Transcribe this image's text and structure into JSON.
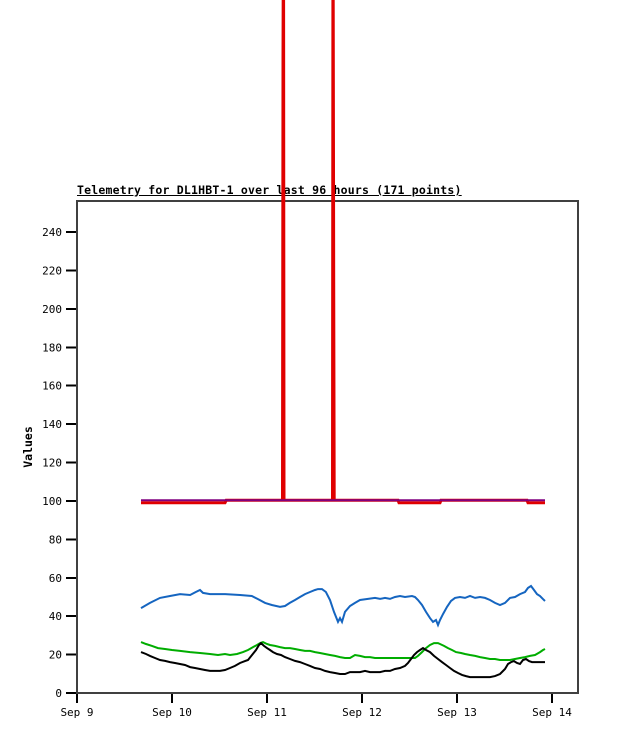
{
  "chart_data": {
    "type": "line",
    "title": "Telemetry for DL1HBT-1 over last 96 hours (171 points)",
    "xlabel": "",
    "ylabel": "Values",
    "grid": false,
    "legend_position": "none",
    "x_unit": "days (0 = Sep 9)",
    "xlim": [
      0,
      5.27
    ],
    "ylim": [
      0,
      256
    ],
    "y_ticks": [
      0,
      20,
      40,
      60,
      80,
      100,
      120,
      140,
      160,
      180,
      200,
      220,
      240
    ],
    "x_ticks": [
      {
        "day": 0,
        "label": "Sep 9"
      },
      {
        "day": 1,
        "label": "Sep 10"
      },
      {
        "day": 2,
        "label": "Sep 11"
      },
      {
        "day": 3,
        "label": "Sep 12"
      },
      {
        "day": 4,
        "label": "Sep 13"
      },
      {
        "day": 5,
        "label": "Sep 14"
      }
    ],
    "axis_color": "#404040",
    "series": [
      {
        "name": "blue",
        "color": "#1565c0",
        "width": 2,
        "points": [
          [
            0.674,
            44.2
          ],
          [
            0.768,
            46.9
          ],
          [
            0.874,
            49.5
          ],
          [
            0.979,
            50.5
          ],
          [
            1.084,
            51.5
          ],
          [
            1.19,
            51.0
          ],
          [
            1.25,
            52.6
          ],
          [
            1.295,
            53.6
          ],
          [
            1.326,
            52.1
          ],
          [
            1.4,
            51.5
          ],
          [
            1.56,
            51.5
          ],
          [
            1.716,
            51.0
          ],
          [
            1.84,
            50.5
          ],
          [
            1.905,
            48.9
          ],
          [
            1.98,
            46.9
          ],
          [
            2.05,
            45.8
          ],
          [
            2.137,
            44.8
          ],
          [
            2.19,
            45.3
          ],
          [
            2.24,
            46.9
          ],
          [
            2.295,
            48.4
          ],
          [
            2.347,
            50.0
          ],
          [
            2.4,
            51.5
          ],
          [
            2.453,
            52.6
          ],
          [
            2.505,
            53.6
          ],
          [
            2.537,
            54.1
          ],
          [
            2.579,
            54.1
          ],
          [
            2.62,
            52.6
          ],
          [
            2.663,
            48.4
          ],
          [
            2.705,
            42.2
          ],
          [
            2.747,
            37.0
          ],
          [
            2.768,
            39.0
          ],
          [
            2.789,
            37.0
          ],
          [
            2.821,
            42.2
          ],
          [
            2.874,
            45.3
          ],
          [
            2.926,
            46.9
          ],
          [
            2.979,
            48.4
          ],
          [
            3.063,
            49.0
          ],
          [
            3.137,
            49.5
          ],
          [
            3.19,
            49.0
          ],
          [
            3.242,
            49.5
          ],
          [
            3.295,
            49.0
          ],
          [
            3.347,
            50.0
          ],
          [
            3.4,
            50.5
          ],
          [
            3.453,
            50.0
          ],
          [
            3.526,
            50.5
          ],
          [
            3.558,
            50.0
          ],
          [
            3.589,
            48.4
          ],
          [
            3.632,
            45.8
          ],
          [
            3.674,
            42.2
          ],
          [
            3.716,
            39.0
          ],
          [
            3.747,
            37.0
          ],
          [
            3.779,
            38.0
          ],
          [
            3.8,
            35.4
          ],
          [
            3.821,
            38.0
          ],
          [
            3.853,
            41.1
          ],
          [
            3.895,
            44.8
          ],
          [
            3.937,
            47.9
          ],
          [
            3.979,
            49.5
          ],
          [
            4.032,
            50.0
          ],
          [
            4.084,
            49.5
          ],
          [
            4.137,
            50.5
          ],
          [
            4.19,
            49.5
          ],
          [
            4.242,
            50.0
          ],
          [
            4.295,
            49.5
          ],
          [
            4.347,
            48.4
          ],
          [
            4.4,
            46.9
          ],
          [
            4.453,
            45.8
          ],
          [
            4.505,
            46.9
          ],
          [
            4.558,
            49.5
          ],
          [
            4.611,
            50.0
          ],
          [
            4.663,
            51.5
          ],
          [
            4.716,
            52.6
          ],
          [
            4.747,
            54.7
          ],
          [
            4.779,
            55.7
          ],
          [
            4.81,
            53.6
          ],
          [
            4.842,
            51.5
          ],
          [
            4.874,
            50.5
          ],
          [
            4.905,
            48.9
          ],
          [
            4.926,
            47.9
          ]
        ]
      },
      {
        "name": "green",
        "color": "#00ad00",
        "width": 2,
        "points": [
          [
            0.674,
            26.5
          ],
          [
            0.726,
            25.5
          ],
          [
            0.789,
            24.5
          ],
          [
            0.853,
            23.4
          ],
          [
            0.926,
            22.9
          ],
          [
            1.0,
            22.4
          ],
          [
            1.084,
            21.9
          ],
          [
            1.19,
            21.3
          ],
          [
            1.295,
            20.8
          ],
          [
            1.4,
            20.3
          ],
          [
            1.484,
            19.8
          ],
          [
            1.558,
            20.3
          ],
          [
            1.611,
            19.8
          ],
          [
            1.684,
            20.3
          ],
          [
            1.747,
            21.3
          ],
          [
            1.8,
            22.4
          ],
          [
            1.853,
            23.9
          ],
          [
            1.895,
            25.0
          ],
          [
            1.926,
            26.0
          ],
          [
            1.958,
            26.5
          ],
          [
            2.0,
            25.5
          ],
          [
            2.032,
            25.0
          ],
          [
            2.084,
            24.5
          ],
          [
            2.137,
            23.9
          ],
          [
            2.19,
            23.4
          ],
          [
            2.242,
            23.4
          ],
          [
            2.295,
            22.9
          ],
          [
            2.347,
            22.4
          ],
          [
            2.4,
            21.9
          ],
          [
            2.453,
            21.9
          ],
          [
            2.505,
            21.3
          ],
          [
            2.558,
            20.8
          ],
          [
            2.611,
            20.3
          ],
          [
            2.663,
            19.8
          ],
          [
            2.716,
            19.3
          ],
          [
            2.768,
            18.7
          ],
          [
            2.821,
            18.2
          ],
          [
            2.874,
            18.2
          ],
          [
            2.926,
            19.8
          ],
          [
            2.979,
            19.3
          ],
          [
            3.032,
            18.7
          ],
          [
            3.084,
            18.7
          ],
          [
            3.137,
            18.2
          ],
          [
            3.242,
            18.2
          ],
          [
            3.347,
            18.2
          ],
          [
            3.453,
            18.2
          ],
          [
            3.558,
            18.2
          ],
          [
            3.589,
            19.3
          ],
          [
            3.632,
            21.3
          ],
          [
            3.674,
            23.4
          ],
          [
            3.716,
            25.0
          ],
          [
            3.758,
            26.0
          ],
          [
            3.8,
            26.0
          ],
          [
            3.821,
            25.5
          ],
          [
            3.863,
            24.5
          ],
          [
            3.905,
            23.4
          ],
          [
            3.947,
            22.4
          ],
          [
            3.989,
            21.3
          ],
          [
            4.042,
            20.8
          ],
          [
            4.084,
            20.3
          ],
          [
            4.137,
            19.8
          ],
          [
            4.19,
            19.3
          ],
          [
            4.242,
            18.7
          ],
          [
            4.295,
            18.2
          ],
          [
            4.347,
            17.7
          ],
          [
            4.4,
            17.7
          ],
          [
            4.453,
            17.2
          ],
          [
            4.558,
            17.2
          ],
          [
            4.611,
            17.7
          ],
          [
            4.663,
            18.2
          ],
          [
            4.716,
            18.7
          ],
          [
            4.768,
            19.3
          ],
          [
            4.821,
            19.8
          ],
          [
            4.874,
            21.3
          ],
          [
            4.905,
            22.4
          ],
          [
            4.926,
            22.9
          ]
        ]
      },
      {
        "name": "black",
        "color": "#000000",
        "width": 2,
        "points": [
          [
            0.674,
            21.3
          ],
          [
            0.726,
            20.3
          ],
          [
            0.768,
            19.3
          ],
          [
            0.821,
            18.2
          ],
          [
            0.874,
            17.2
          ],
          [
            0.926,
            16.7
          ],
          [
            0.979,
            16.1
          ],
          [
            1.032,
            15.6
          ],
          [
            1.084,
            15.1
          ],
          [
            1.137,
            14.6
          ],
          [
            1.19,
            13.5
          ],
          [
            1.242,
            13.0
          ],
          [
            1.295,
            12.5
          ],
          [
            1.347,
            12.0
          ],
          [
            1.4,
            11.5
          ],
          [
            1.505,
            11.5
          ],
          [
            1.558,
            12.0
          ],
          [
            1.611,
            13.0
          ],
          [
            1.663,
            14.1
          ],
          [
            1.716,
            15.6
          ],
          [
            1.768,
            16.6
          ],
          [
            1.8,
            17.2
          ],
          [
            1.842,
            19.8
          ],
          [
            1.884,
            22.4
          ],
          [
            1.916,
            25.0
          ],
          [
            1.937,
            26.0
          ],
          [
            1.968,
            24.5
          ],
          [
            2.0,
            23.4
          ],
          [
            2.032,
            22.4
          ],
          [
            2.063,
            21.3
          ],
          [
            2.105,
            20.3
          ],
          [
            2.147,
            19.8
          ],
          [
            2.19,
            18.7
          ],
          [
            2.242,
            17.7
          ],
          [
            2.295,
            16.7
          ],
          [
            2.347,
            16.1
          ],
          [
            2.4,
            15.1
          ],
          [
            2.453,
            14.1
          ],
          [
            2.505,
            13.0
          ],
          [
            2.558,
            12.5
          ],
          [
            2.611,
            11.5
          ],
          [
            2.663,
            10.9
          ],
          [
            2.716,
            10.4
          ],
          [
            2.768,
            9.9
          ],
          [
            2.821,
            9.9
          ],
          [
            2.874,
            10.9
          ],
          [
            2.979,
            10.9
          ],
          [
            3.032,
            11.5
          ],
          [
            3.084,
            10.9
          ],
          [
            3.19,
            10.9
          ],
          [
            3.242,
            11.5
          ],
          [
            3.295,
            11.5
          ],
          [
            3.347,
            12.5
          ],
          [
            3.4,
            13.0
          ],
          [
            3.453,
            14.1
          ],
          [
            3.484,
            15.6
          ],
          [
            3.516,
            17.7
          ],
          [
            3.547,
            19.8
          ],
          [
            3.579,
            21.3
          ],
          [
            3.611,
            22.4
          ],
          [
            3.642,
            23.4
          ],
          [
            3.674,
            22.4
          ],
          [
            3.716,
            21.3
          ],
          [
            3.758,
            19.3
          ],
          [
            3.8,
            17.7
          ],
          [
            3.842,
            16.1
          ],
          [
            3.884,
            14.6
          ],
          [
            3.926,
            13.0
          ],
          [
            3.968,
            11.5
          ],
          [
            4.011,
            10.4
          ],
          [
            4.053,
            9.4
          ],
          [
            4.095,
            8.8
          ],
          [
            4.137,
            8.3
          ],
          [
            4.242,
            8.3
          ],
          [
            4.347,
            8.3
          ],
          [
            4.4,
            8.8
          ],
          [
            4.453,
            9.9
          ],
          [
            4.505,
            12.5
          ],
          [
            4.537,
            15.1
          ],
          [
            4.568,
            16.1
          ],
          [
            4.6,
            16.6
          ],
          [
            4.632,
            15.6
          ],
          [
            4.663,
            15.1
          ],
          [
            4.695,
            17.2
          ],
          [
            4.726,
            17.7
          ],
          [
            4.758,
            16.6
          ],
          [
            4.789,
            16.1
          ],
          [
            4.821,
            16.1
          ],
          [
            4.926,
            16.1
          ]
        ]
      },
      {
        "name": "red",
        "color": "#e00000",
        "width": 3,
        "points": [
          [
            0.674,
            99.0
          ],
          [
            1.558,
            99.0
          ],
          [
            1.57,
            100.3
          ],
          [
            2.163,
            100.3
          ],
          [
            2.168,
            330.0
          ],
          [
            2.174,
            420.0
          ],
          [
            2.179,
            100.3
          ],
          [
            2.69,
            100.3
          ],
          [
            2.695,
            420.0
          ],
          [
            2.702,
            215.0
          ],
          [
            2.707,
            100.3
          ],
          [
            3.379,
            100.3
          ],
          [
            3.389,
            99.0
          ],
          [
            3.821,
            99.0
          ],
          [
            3.832,
            100.3
          ],
          [
            4.737,
            100.3
          ],
          [
            4.747,
            99.0
          ],
          [
            4.926,
            99.0
          ]
        ]
      },
      {
        "name": "purple",
        "color": "#800080",
        "width": 2,
        "points": [
          [
            0.674,
            100.3
          ],
          [
            4.926,
            100.3
          ]
        ]
      }
    ]
  }
}
